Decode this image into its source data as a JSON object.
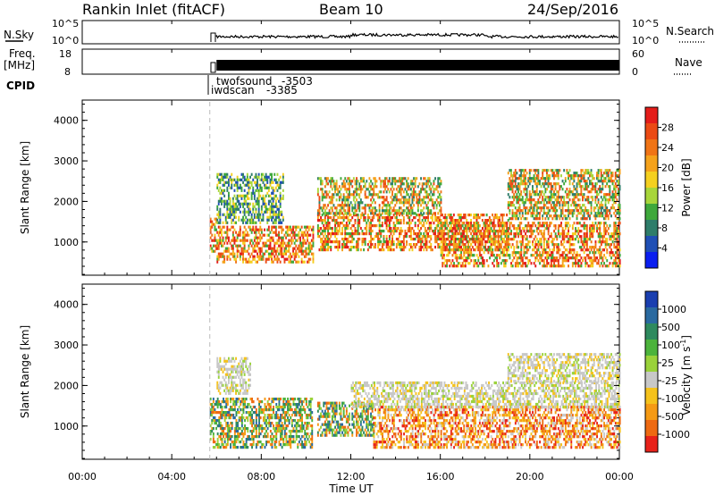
{
  "header": {
    "station": "Rankin Inlet (fitACF)",
    "beam": "Beam 10",
    "date": "24/Sep/2016"
  },
  "status_panels": {
    "nsky_label": "N.Sky",
    "nsearch_label": "N.Search",
    "freq_label_1": "Freq.",
    "freq_label_2": "[MHz]",
    "nave_label": "Nave",
    "cpid_label": "CPID",
    "noise_left_ticks": [
      "10^5",
      "10^0"
    ],
    "noise_right_ticks": [
      "10^5",
      "10^0"
    ],
    "freq_left_ticks": [
      "18",
      "8"
    ],
    "nave_right_ticks": [
      "60",
      "0"
    ],
    "cpid_entries": [
      {
        "name": "twofsound",
        "value": "-3503"
      },
      {
        "name": "iwdscan",
        "value": "-3385"
      }
    ]
  },
  "chart_data": [
    {
      "type": "heatmap",
      "title": "",
      "xlabel": "",
      "ylabel": "Slant Range [km]",
      "x_unit": "hours UT",
      "xlim": [
        0,
        24
      ],
      "ylim": [
        180,
        4500
      ],
      "yticks": [
        1000,
        2000,
        3000,
        4000
      ],
      "colorbar": {
        "label": "Power [dB]",
        "ticks": [
          4,
          8,
          12,
          16,
          20,
          24,
          28
        ],
        "range": [
          0,
          30
        ],
        "colors": [
          "#0a1ef0",
          "#1f4fb5",
          "#2e7d6a",
          "#3ea83b",
          "#a8d63a",
          "#f5d020",
          "#f5a21c",
          "#f07416",
          "#eb4a14",
          "#e41d1a"
        ]
      },
      "scatter_regions": [
        {
          "start_hour": 5.7,
          "end_hour": 6.0,
          "range_km": [
            800,
            1600
          ],
          "level": "high"
        },
        {
          "start_hour": 6.0,
          "end_hour": 10.3,
          "range_km": [
            500,
            1400
          ],
          "level": "high"
        },
        {
          "start_hour": 6.0,
          "end_hour": 9.0,
          "range_km": [
            1500,
            2700
          ],
          "level": "low"
        },
        {
          "start_hour": 10.5,
          "end_hour": 19.0,
          "range_km": [
            800,
            1700
          ],
          "level": "high"
        },
        {
          "start_hour": 10.5,
          "end_hour": 16.0,
          "range_km": [
            1700,
            2600
          ],
          "level": "medium"
        },
        {
          "start_hour": 16.0,
          "end_hour": 24.0,
          "range_km": [
            400,
            1500
          ],
          "level": "high"
        },
        {
          "start_hour": 19.0,
          "end_hour": 24.0,
          "range_km": [
            1600,
            2800
          ],
          "level": "medium"
        }
      ]
    },
    {
      "type": "heatmap",
      "title": "",
      "xlabel": "Time UT",
      "ylabel": "Slant Range [km]",
      "x_unit": "hours UT",
      "xlim": [
        0,
        24
      ],
      "ylim": [
        180,
        4500
      ],
      "yticks": [
        1000,
        2000,
        3000,
        4000
      ],
      "xticks": [
        "00:00",
        "04:00",
        "08:00",
        "12:00",
        "16:00",
        "20:00",
        "00:00"
      ],
      "colorbar": {
        "label": "Velocity [m s-1]",
        "label_text": "Velocity [m s",
        "label_superscript": "-1",
        "label_close": "]",
        "ticks": [
          "1000",
          "500",
          "100",
          "25",
          "-25",
          "-100",
          "-500",
          "-1000"
        ],
        "colors": [
          "#1a3fb0",
          "#2a6aa0",
          "#2e8a5e",
          "#4cb33b",
          "#9ad23a",
          "#c8c8c8",
          "#f5c21c",
          "#f59a14",
          "#ee6a12",
          "#e8221a"
        ]
      },
      "scatter_regions": [
        {
          "start_hour": 5.7,
          "end_hour": 10.3,
          "range_km": [
            500,
            1700
          ],
          "level": "mixed_green_orange"
        },
        {
          "start_hour": 6.0,
          "end_hour": 7.5,
          "range_km": [
            1800,
            2700
          ],
          "level": "gray"
        },
        {
          "start_hour": 10.5,
          "end_hour": 13.0,
          "range_km": [
            800,
            1600
          ],
          "level": "mixed_green_orange"
        },
        {
          "start_hour": 13.0,
          "end_hour": 24.0,
          "range_km": [
            500,
            1500
          ],
          "level": "orange"
        },
        {
          "start_hour": 12.0,
          "end_hour": 24.0,
          "range_km": [
            1500,
            2100
          ],
          "level": "gray"
        },
        {
          "start_hour": 19.0,
          "end_hour": 24.0,
          "range_km": [
            2100,
            2800
          ],
          "level": "gray"
        }
      ]
    }
  ]
}
